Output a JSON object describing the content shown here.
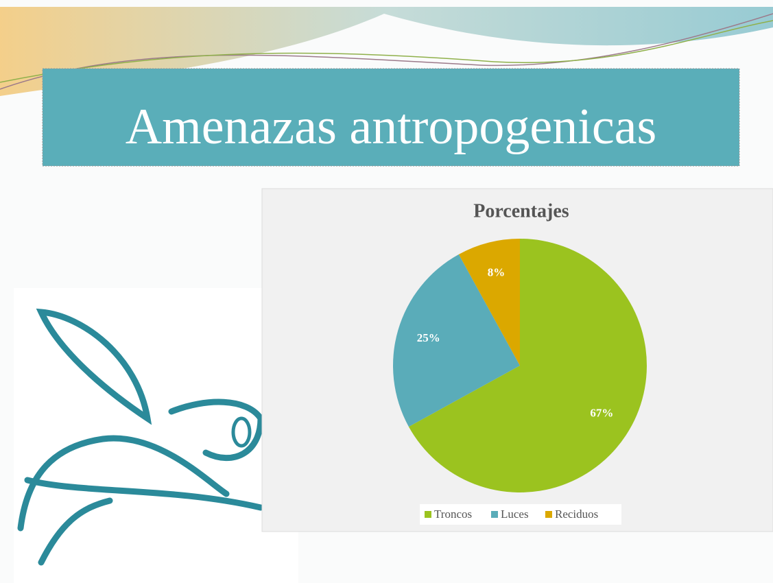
{
  "slide": {
    "title": "Amenazas antropogenicas"
  },
  "chart_data": {
    "type": "pie",
    "title": "Porcentajes",
    "categories": [
      "Troncos",
      "Luces",
      "Reciduos"
    ],
    "values": [
      67,
      25,
      8
    ],
    "value_labels": [
      "67%",
      "25%",
      "8%"
    ],
    "colors": [
      "#9bc31f",
      "#5aacb9",
      "#dba800"
    ]
  }
}
